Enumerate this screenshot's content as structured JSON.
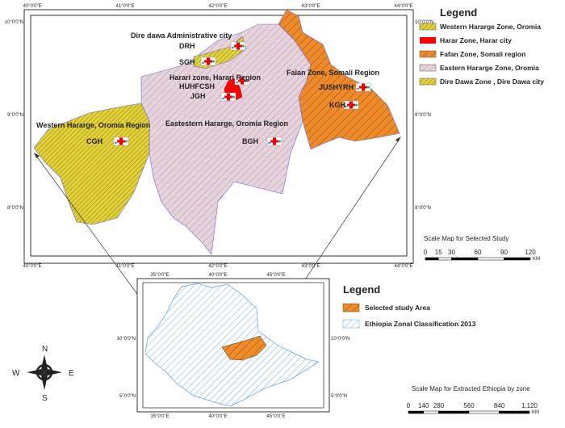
{
  "main_map": {
    "lon_labels": [
      "40°0'0\"E",
      "41°0'0\"E",
      "42°0'0\"E",
      "43°0'0\"E",
      "44°0'0\"E"
    ],
    "lat_labels": [
      "10°0'0\"N",
      "9°0'0\"N",
      "8°0'0\"N"
    ],
    "regions": [
      {
        "label": "Dire dawa Administrative city"
      },
      {
        "label": "Harari zone, Harari Region"
      },
      {
        "label": "Falan Zone, Somali Region"
      },
      {
        "label": "Western Hararge, Oromia Region"
      },
      {
        "label": "Eastestern Hararge, Oromia Region"
      }
    ],
    "hospitals": [
      "DRH",
      "SGH",
      "HUHFCSH",
      "JGH",
      "JUSHYRH",
      "KGH",
      "CGH",
      "BGH"
    ]
  },
  "legend": {
    "title": "Legend",
    "items": [
      "Western Hararge Zone, Oromia",
      "Harar Zone, Harar city",
      "Fafan Zone, Somali region",
      "Eastern Hararge Zone, Oromia",
      "Dire Dawa Zone , Dire Dawa city"
    ]
  },
  "scale": {
    "title": "Scale Map for Selected Study",
    "ticks": [
      "0",
      "15",
      "30",
      "60",
      "90",
      "120"
    ],
    "unit": "KM"
  },
  "inset_map": {
    "lon_labels": [
      "35°0'0\"E",
      "40°0'0\"E",
      "45°0'0\"E"
    ],
    "lat_labels": [
      "10°0'0\"N",
      "5°0'0\"N"
    ]
  },
  "inset_legend": {
    "title": "Legend",
    "items": [
      "Selected study Area",
      "Ethiopia Zonal Classification 2013"
    ]
  },
  "inset_scale": {
    "title": "Scale Map for Extracted Ethiopia by zone",
    "ticks": [
      "0",
      "140",
      "280",
      "560",
      "840",
      "1,120"
    ],
    "unit": "KM"
  },
  "compass": {
    "n": "N",
    "s": "S",
    "e": "E",
    "w": "W"
  }
}
